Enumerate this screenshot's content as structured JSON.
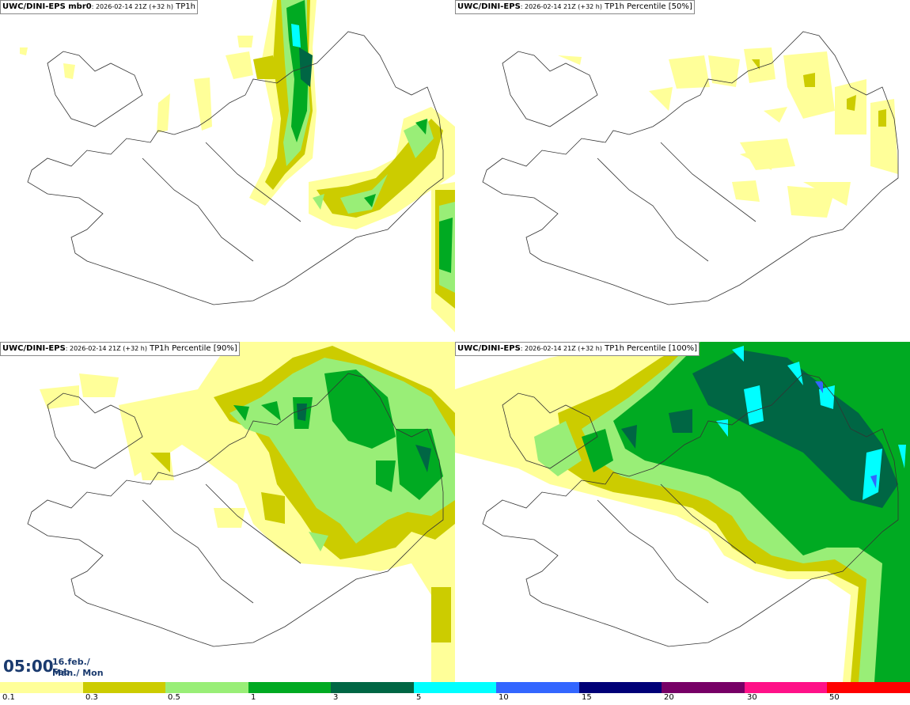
{
  "panels": [
    {
      "model": "UWC/DINI-EPS mbr0",
      "run": ": 2026-02-14 21Z (+32 h)",
      "field": " TP1h"
    },
    {
      "model": "UWC/DINI-EPS",
      "run": ": 2026-02-14 21Z (+32 h)",
      "field": " TP1h Percentile [50%]"
    },
    {
      "model": "UWC/DINI-EPS",
      "run": ": 2026-02-14 21Z (+32 h)",
      "field": " TP1h Percentile [90%]"
    },
    {
      "model": "UWC/DINI-EPS",
      "run": ": 2026-02-14 21Z (+32 h)",
      "field": " TP1h Percentile [100%]"
    }
  ],
  "valid_time": {
    "time": "05:00",
    "date_line1": "16.feb./ Feb",
    "date_line2": "Mán./ Mon"
  },
  "legend": {
    "labels": [
      "0.1",
      "0.3",
      "0.5",
      "1",
      "3",
      "5",
      "10",
      "15",
      "20",
      "30",
      "50"
    ],
    "colors": [
      "#ffff99",
      "#cccc00",
      "#99ee77",
      "#00aa22",
      "#006644",
      "#00ffff",
      "#3366ff",
      "#000077",
      "#770066",
      "#ff1188",
      "#ff0000"
    ]
  }
}
